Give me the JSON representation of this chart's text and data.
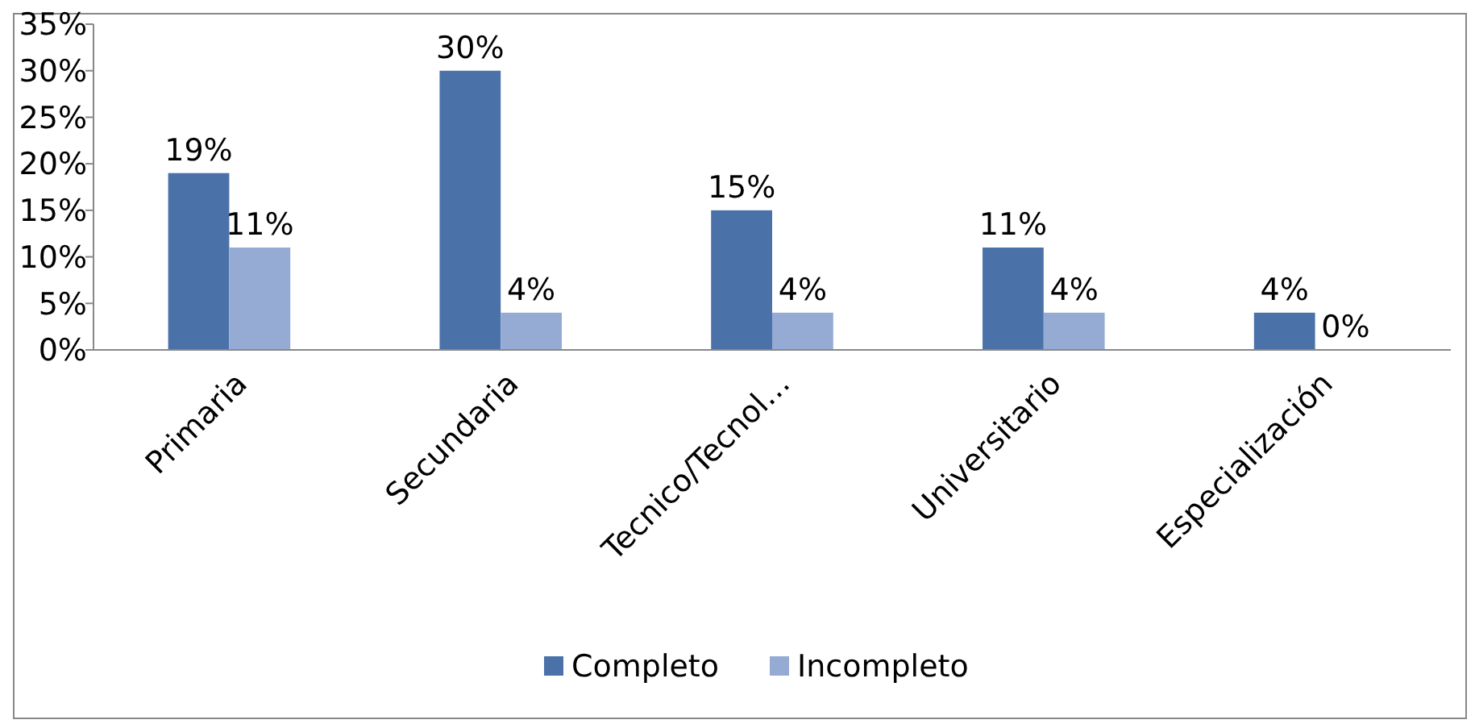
{
  "chart_data": {
    "type": "bar",
    "categories": [
      "Primaria",
      "Secundaria",
      "Tecnico/Tecnol…",
      "Universitario",
      "Especialización"
    ],
    "series": [
      {
        "name": "Completo",
        "color": "#4a72a8",
        "values": [
          19,
          30,
          15,
          11,
          4
        ],
        "value_labels": [
          "19%",
          "30%",
          "15%",
          "11%",
          "4%"
        ]
      },
      {
        "name": "Incompleto",
        "color": "#95abd3",
        "values": [
          11,
          4,
          4,
          4,
          0
        ],
        "value_labels": [
          "11%",
          "4%",
          "4%",
          "4%",
          "0%"
        ]
      }
    ],
    "ylim": [
      0,
      35
    ],
    "yticks": [
      {
        "value": 0,
        "label": "0%"
      },
      {
        "value": 5,
        "label": "5%"
      },
      {
        "value": 10,
        "label": "10%"
      },
      {
        "value": 15,
        "label": "15%"
      },
      {
        "value": 20,
        "label": "20%"
      },
      {
        "value": 25,
        "label": "25%"
      },
      {
        "value": 30,
        "label": "30%"
      },
      {
        "value": 35,
        "label": "35%"
      }
    ],
    "legend": "bottom"
  }
}
